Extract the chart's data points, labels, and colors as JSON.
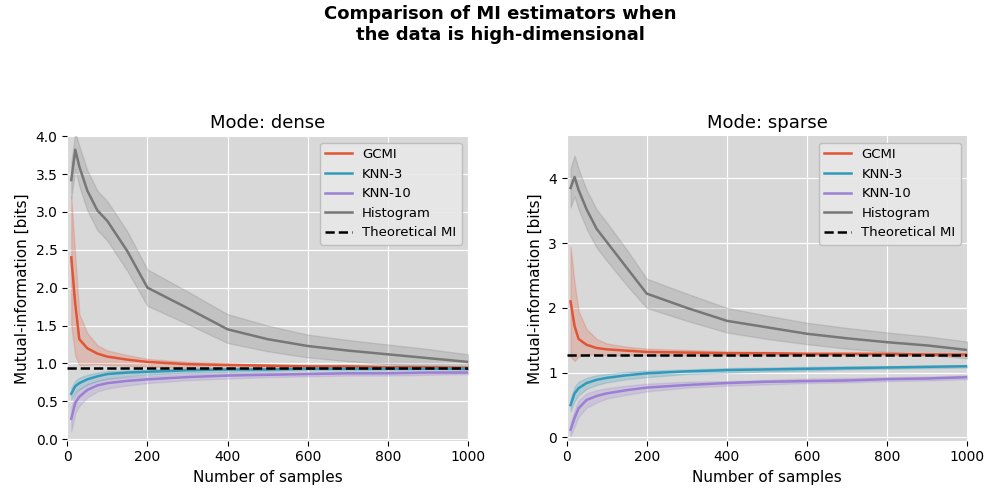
{
  "title": "Comparison of MI estimators when\nthe data is high-dimensional",
  "title_fontsize": 13,
  "title_fontweight": "bold",
  "subplot_titles": [
    "Mode: dense",
    "Mode: sparse"
  ],
  "subplot_title_fontsize": 13,
  "xlabel": "Number of samples",
  "ylabel": "Mutual-information [bits]",
  "axis_label_fontsize": 11,
  "tick_fontsize": 10,
  "background_color": "#d8d8d8",
  "x_samples": [
    10,
    20,
    30,
    50,
    75,
    100,
    150,
    200,
    300,
    400,
    500,
    600,
    700,
    800,
    900,
    1000
  ],
  "dense": {
    "theoretical_mi": 0.943,
    "xlim": [
      0,
      1000
    ],
    "ylim": [
      -0.02,
      4.0
    ],
    "yticks": [
      0.0,
      0.5,
      1.0,
      1.5,
      2.0,
      2.5,
      3.0,
      3.5,
      4.0
    ],
    "gcmi_mean": [
      2.4,
      1.78,
      1.32,
      1.2,
      1.13,
      1.09,
      1.05,
      1.02,
      0.99,
      0.98,
      0.97,
      0.96,
      0.96,
      0.95,
      0.95,
      0.94
    ],
    "gcmi_low": [
      1.5,
      1.1,
      0.98,
      0.98,
      0.99,
      0.98,
      0.97,
      0.96,
      0.94,
      0.93,
      0.93,
      0.93,
      0.93,
      0.93,
      0.93,
      0.92
    ],
    "gcmi_high": [
      3.2,
      2.4,
      1.65,
      1.4,
      1.24,
      1.17,
      1.11,
      1.06,
      1.02,
      1.0,
      0.99,
      0.98,
      0.98,
      0.97,
      0.97,
      0.96
    ],
    "knn3_mean": [
      0.6,
      0.7,
      0.74,
      0.79,
      0.83,
      0.86,
      0.88,
      0.89,
      0.91,
      0.92,
      0.92,
      0.93,
      0.93,
      0.93,
      0.93,
      0.93
    ],
    "knn3_low": [
      0.52,
      0.62,
      0.66,
      0.72,
      0.77,
      0.8,
      0.83,
      0.85,
      0.88,
      0.89,
      0.9,
      0.91,
      0.91,
      0.91,
      0.92,
      0.92
    ],
    "knn3_high": [
      0.68,
      0.77,
      0.81,
      0.85,
      0.88,
      0.9,
      0.91,
      0.92,
      0.93,
      0.93,
      0.93,
      0.94,
      0.94,
      0.94,
      0.94,
      0.94
    ],
    "knn10_mean": [
      0.27,
      0.48,
      0.56,
      0.65,
      0.71,
      0.74,
      0.77,
      0.79,
      0.82,
      0.84,
      0.85,
      0.86,
      0.87,
      0.87,
      0.88,
      0.88
    ],
    "knn10_low": [
      0.1,
      0.34,
      0.44,
      0.55,
      0.63,
      0.67,
      0.71,
      0.74,
      0.78,
      0.8,
      0.82,
      0.83,
      0.84,
      0.84,
      0.85,
      0.86
    ],
    "knn10_high": [
      0.42,
      0.6,
      0.66,
      0.73,
      0.77,
      0.8,
      0.82,
      0.83,
      0.86,
      0.87,
      0.88,
      0.88,
      0.89,
      0.89,
      0.9,
      0.9
    ],
    "hist_mean": [
      3.42,
      3.82,
      3.6,
      3.28,
      3.02,
      2.88,
      2.48,
      2.0,
      1.73,
      1.45,
      1.32,
      1.23,
      1.17,
      1.12,
      1.07,
      1.02
    ],
    "hist_low": [
      3.18,
      3.57,
      3.34,
      3.02,
      2.76,
      2.62,
      2.22,
      1.76,
      1.52,
      1.27,
      1.16,
      1.08,
      1.03,
      0.99,
      0.96,
      0.92
    ],
    "hist_high": [
      3.65,
      4.05,
      3.87,
      3.55,
      3.28,
      3.14,
      2.74,
      2.24,
      1.95,
      1.65,
      1.5,
      1.38,
      1.31,
      1.25,
      1.19,
      1.12
    ]
  },
  "sparse": {
    "theoretical_mi": 1.275,
    "xlim": [
      0,
      1000
    ],
    "ylim": [
      -0.05,
      4.65
    ],
    "yticks": [
      0.0,
      1.0,
      2.0,
      3.0,
      4.0
    ],
    "gcmi_mean": [
      2.1,
      1.72,
      1.52,
      1.43,
      1.38,
      1.36,
      1.34,
      1.32,
      1.31,
      1.3,
      1.3,
      1.29,
      1.29,
      1.29,
      1.28,
      1.28
    ],
    "gcmi_low": [
      1.25,
      1.18,
      1.25,
      1.28,
      1.28,
      1.27,
      1.27,
      1.27,
      1.27,
      1.27,
      1.27,
      1.27,
      1.27,
      1.27,
      1.26,
      1.26
    ],
    "gcmi_high": [
      2.95,
      2.38,
      1.95,
      1.67,
      1.52,
      1.45,
      1.4,
      1.37,
      1.35,
      1.33,
      1.32,
      1.31,
      1.31,
      1.3,
      1.3,
      1.29
    ],
    "knn3_mean": [
      0.5,
      0.68,
      0.76,
      0.84,
      0.89,
      0.92,
      0.96,
      0.99,
      1.02,
      1.04,
      1.05,
      1.06,
      1.07,
      1.08,
      1.09,
      1.1
    ],
    "knn3_low": [
      0.4,
      0.56,
      0.65,
      0.75,
      0.81,
      0.85,
      0.9,
      0.93,
      0.98,
      1.0,
      1.02,
      1.03,
      1.05,
      1.06,
      1.07,
      1.08
    ],
    "knn3_high": [
      0.6,
      0.78,
      0.86,
      0.92,
      0.96,
      0.98,
      1.01,
      1.03,
      1.05,
      1.07,
      1.08,
      1.09,
      1.1,
      1.1,
      1.11,
      1.11
    ],
    "knn10_mean": [
      0.12,
      0.3,
      0.45,
      0.58,
      0.64,
      0.68,
      0.73,
      0.77,
      0.81,
      0.84,
      0.86,
      0.87,
      0.88,
      0.9,
      0.91,
      0.93
    ],
    "knn10_low": [
      0.02,
      0.17,
      0.32,
      0.46,
      0.54,
      0.6,
      0.66,
      0.71,
      0.77,
      0.8,
      0.82,
      0.84,
      0.85,
      0.87,
      0.88,
      0.9
    ],
    "knn10_high": [
      0.23,
      0.42,
      0.57,
      0.68,
      0.73,
      0.76,
      0.8,
      0.83,
      0.86,
      0.87,
      0.89,
      0.91,
      0.92,
      0.93,
      0.94,
      0.96
    ],
    "hist_mean": [
      3.85,
      4.02,
      3.82,
      3.52,
      3.22,
      3.02,
      2.62,
      2.22,
      2.0,
      1.8,
      1.7,
      1.6,
      1.53,
      1.47,
      1.42,
      1.35
    ],
    "hist_low": [
      3.55,
      3.72,
      3.52,
      3.22,
      2.93,
      2.73,
      2.35,
      2.0,
      1.8,
      1.62,
      1.52,
      1.44,
      1.37,
      1.32,
      1.28,
      1.22
    ],
    "hist_high": [
      4.15,
      4.35,
      4.14,
      3.82,
      3.52,
      3.32,
      2.9,
      2.45,
      2.22,
      2.0,
      1.88,
      1.77,
      1.69,
      1.62,
      1.56,
      1.48
    ]
  },
  "gcmi_color": "#e05535",
  "knn3_color": "#3399bb",
  "knn10_color": "#9b7fd4",
  "hist_color": "#777777",
  "theoretical_color": "#000000",
  "fill_alpha": 0.22,
  "line_width": 1.8
}
